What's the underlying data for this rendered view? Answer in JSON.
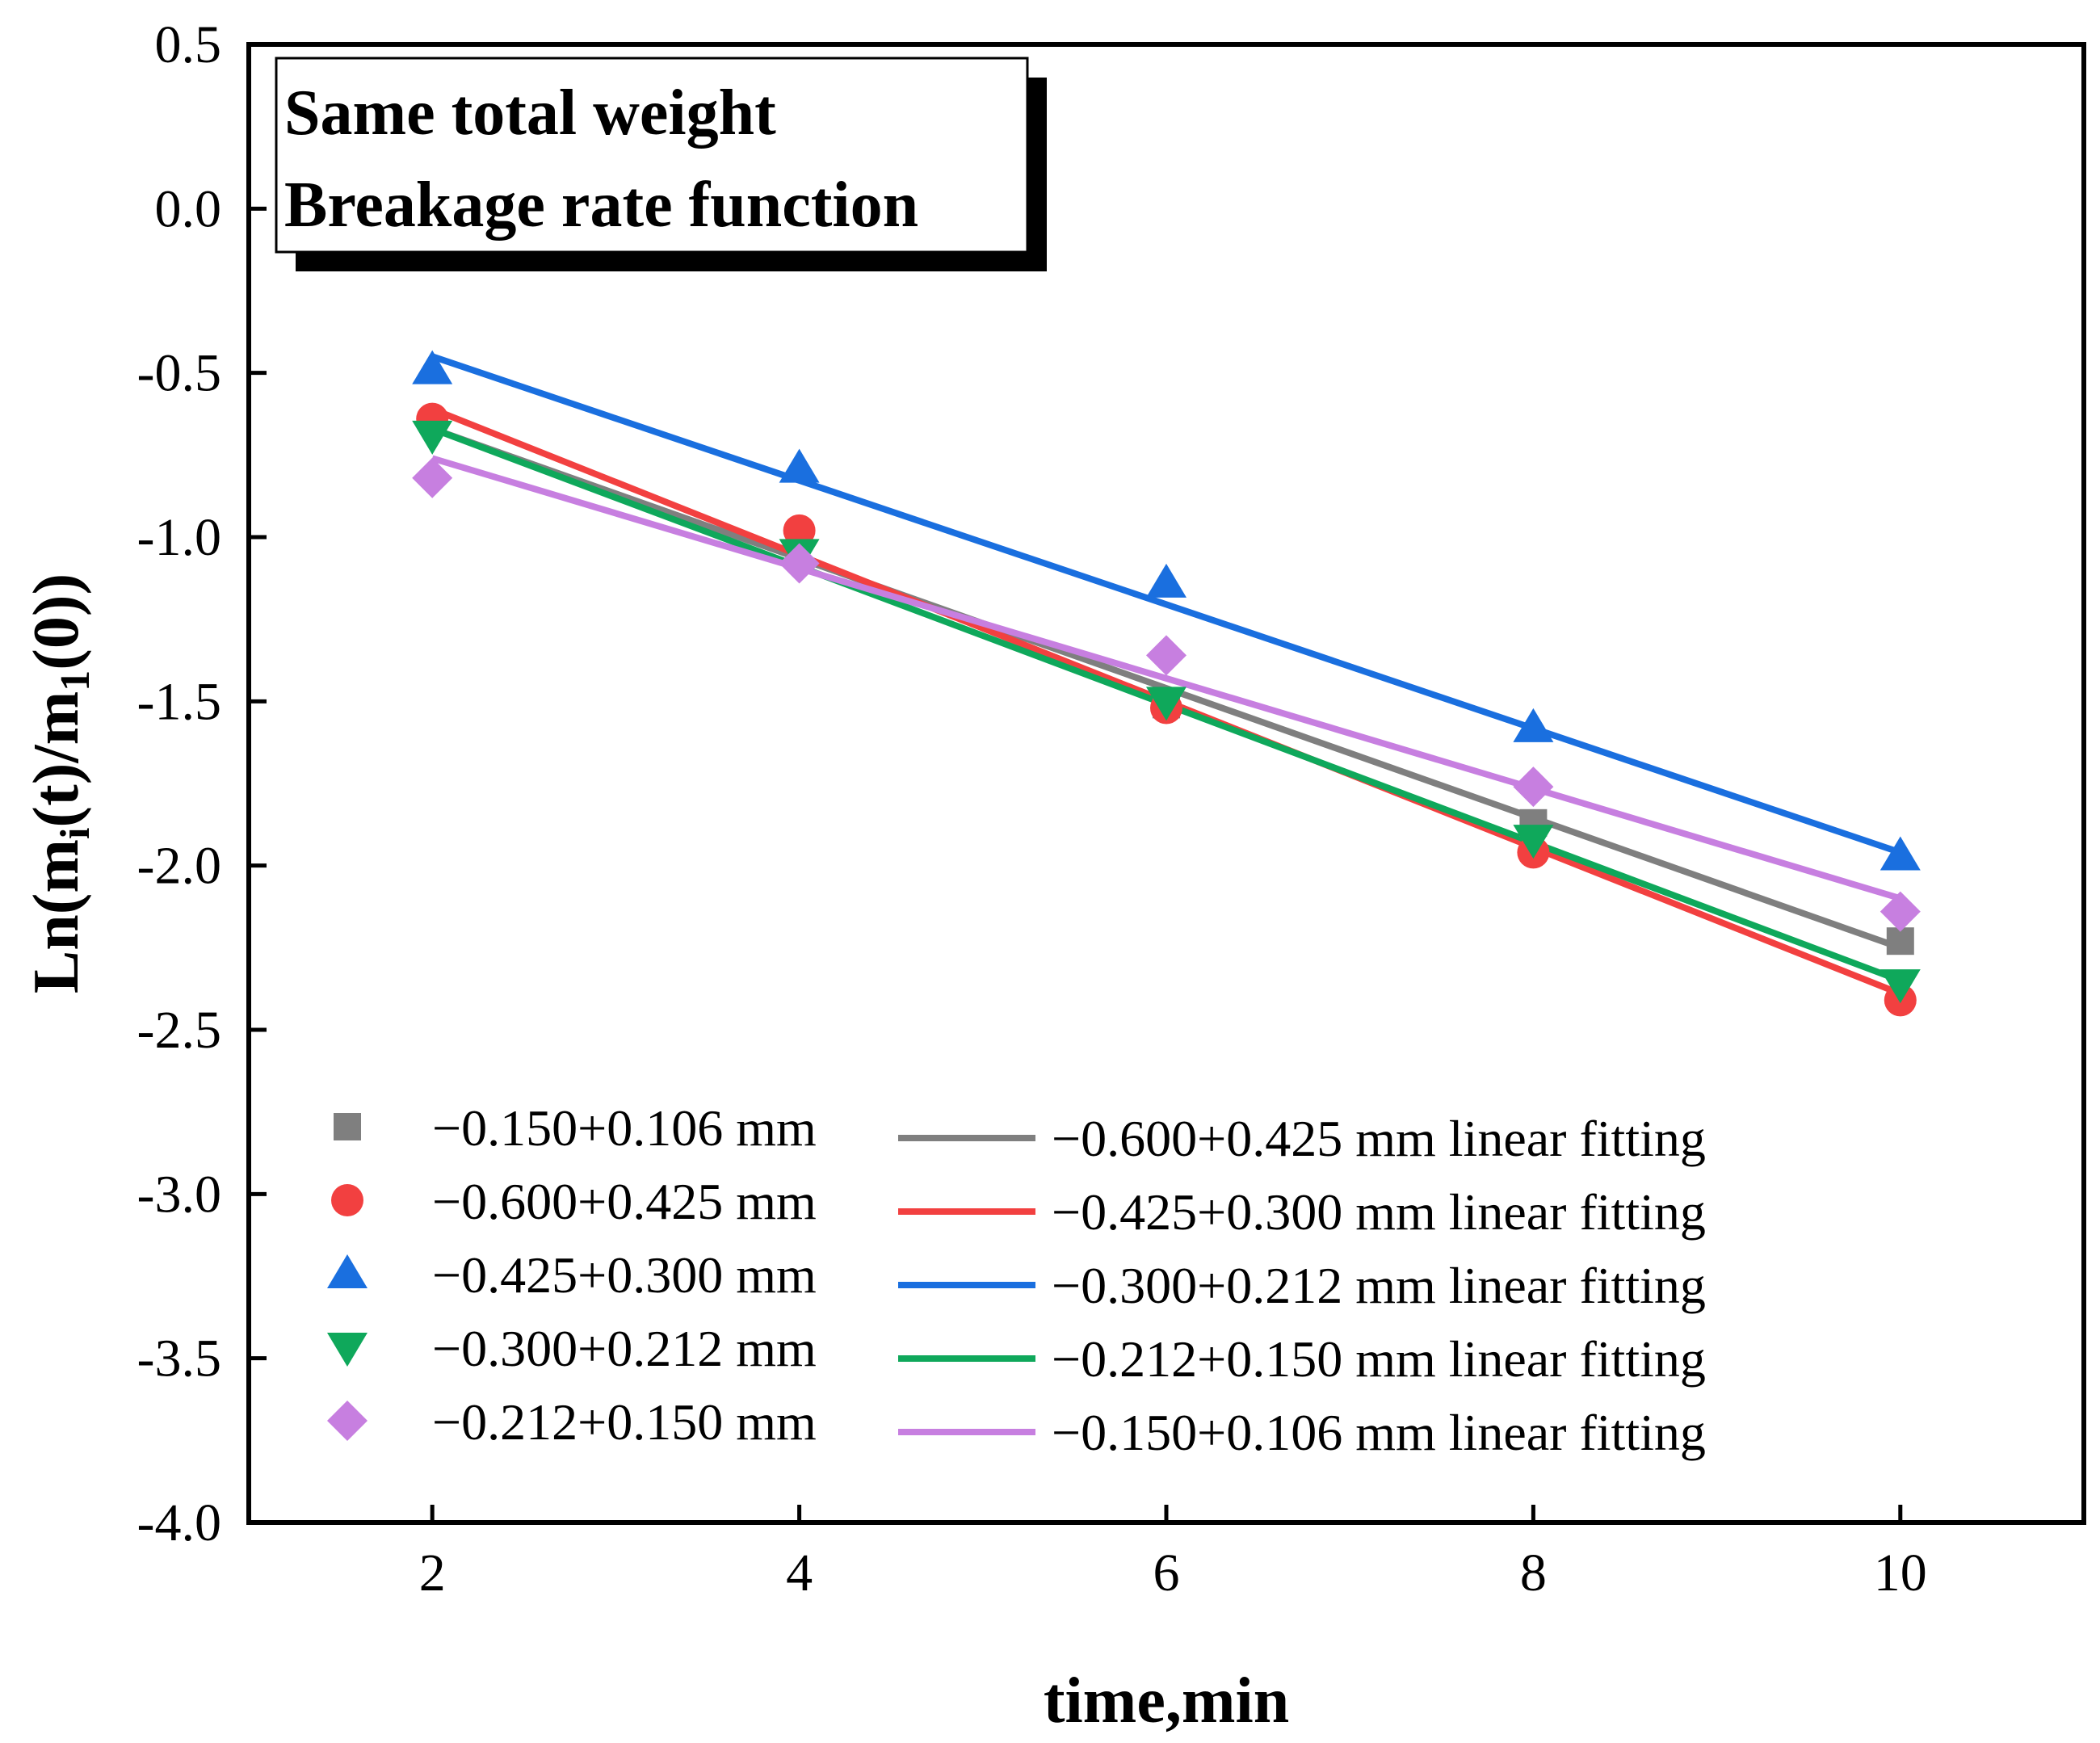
{
  "chart_data": {
    "type": "scatter",
    "title_lines": [
      "Same total weight",
      "Breakage rate function"
    ],
    "xlabel": "time,min",
    "ylabel_parts": [
      "Ln(m",
      "i",
      "(t)/m",
      "1",
      "(0))"
    ],
    "xlim": [
      1,
      11
    ],
    "ylim": [
      -4.0,
      0.5
    ],
    "xticks": [
      2,
      4,
      6,
      8,
      10
    ],
    "xtick_labels": [
      "2",
      "4",
      "6",
      "8",
      "10"
    ],
    "yticks": [
      0.5,
      0.0,
      -0.5,
      -1.0,
      -1.5,
      -2.0,
      -2.5,
      -3.0,
      -3.5,
      -4.0
    ],
    "ytick_labels": [
      "0.5",
      "0.0",
      "-0.5",
      "-1.0",
      "-1.5",
      "-2.0",
      "-2.5",
      "-3.0",
      "-3.5",
      "-4.0"
    ],
    "grid": false,
    "legend_position": "bottom-left",
    "x": [
      2,
      4,
      6,
      8,
      10
    ],
    "series": [
      {
        "name": "−0.150+0.106 mm",
        "marker": "square",
        "color": "#7f7f7f",
        "values": [
          null,
          null,
          -1.51,
          -1.87,
          -2.23
        ]
      },
      {
        "name": "−0.600+0.425 mm",
        "marker": "circle",
        "color": "#f24040",
        "values": [
          -0.64,
          -0.98,
          -1.52,
          -1.96,
          -2.41
        ]
      },
      {
        "name": "−0.425+0.300 mm",
        "marker": "triangle-up",
        "color": "#1a6fdf",
        "values": [
          -0.49,
          -0.79,
          -1.14,
          -1.58,
          -1.97
        ]
      },
      {
        "name": "−0.300+0.212 mm",
        "marker": "triangle-down",
        "color": "#0fa85b",
        "values": [
          -0.69,
          -1.05,
          -1.5,
          -1.92,
          -2.36
        ]
      },
      {
        "name": "−0.212+0.150 mm",
        "marker": "diamond",
        "color": "#c77fe0",
        "values": [
          -0.82,
          -1.08,
          -1.36,
          -1.76,
          -2.14
        ]
      }
    ],
    "fits": [
      {
        "name": "−0.600+0.425 mm linear fitting",
        "color": "#7f7f7f",
        "x": [
          2,
          10
        ],
        "y": [
          -0.67,
          -2.25
        ]
      },
      {
        "name": "−0.425+0.300 mm linear fitting",
        "color": "#f24040",
        "x": [
          2,
          10
        ],
        "y": [
          -0.61,
          -2.39
        ]
      },
      {
        "name": "−0.300+0.212 mm linear fitting",
        "color": "#1a6fdf",
        "x": [
          2,
          10
        ],
        "y": [
          -0.45,
          -1.96
        ]
      },
      {
        "name": "−0.212+0.150 mm linear fitting",
        "color": "#0fa85b",
        "x": [
          2,
          10
        ],
        "y": [
          -0.67,
          -2.35
        ]
      },
      {
        "name": "−0.150+0.106 mm linear fitting",
        "color": "#c77fe0",
        "x": [
          2,
          10
        ],
        "y": [
          -0.76,
          -2.1
        ]
      }
    ]
  }
}
